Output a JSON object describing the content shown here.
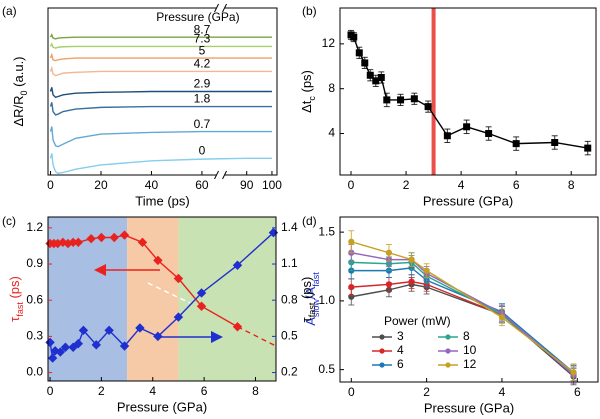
{
  "chart_data": [
    {
      "type": "line",
      "panel_label": "(a)",
      "xlabel": "Time (ps)",
      "ylabel": [
        "ΔR/R",
        "0",
        " (a.u.)"
      ],
      "xlim": [
        -1,
        102
      ],
      "xbreak": [
        65,
        82
      ],
      "ylim": [
        0,
        10
      ],
      "xticks": [
        0,
        20,
        40,
        60,
        90,
        100
      ],
      "legend": "inline",
      "legend_title": "Pressure (GPa)",
      "x": [
        0,
        0.5,
        1,
        2,
        3,
        5,
        10,
        20,
        40,
        60,
        90,
        100
      ],
      "series": [
        {
          "name": "8.7",
          "color": "#7ba23f",
          "values": [
            8.25,
            8.4,
            8.2,
            8.15,
            8.2,
            8.22,
            8.25,
            8.25,
            8.25,
            8.25,
            8.25,
            8.25
          ]
        },
        {
          "name": "7.3",
          "color": "#a9cf6e",
          "values": [
            7.7,
            7.85,
            7.65,
            7.6,
            7.65,
            7.68,
            7.7,
            7.7,
            7.7,
            7.7,
            7.7,
            7.7
          ]
        },
        {
          "name": "5",
          "color": "#f0a060",
          "values": [
            7.0,
            7.2,
            6.9,
            6.85,
            6.9,
            6.95,
            7.0,
            7.0,
            7.0,
            7.0,
            7.0,
            7.0
          ]
        },
        {
          "name": "4.2",
          "color": "#f3b697",
          "values": [
            6.2,
            6.4,
            6.05,
            5.95,
            6.0,
            6.1,
            6.15,
            6.2,
            6.2,
            6.2,
            6.2,
            6.2
          ]
        },
        {
          "name": "2.9",
          "color": "#1d4f7a",
          "values": [
            5.0,
            5.25,
            4.8,
            4.65,
            4.7,
            4.8,
            4.9,
            4.95,
            5.0,
            5.0,
            5.0,
            5.0
          ]
        },
        {
          "name": "1.8",
          "color": "#3a6f9e",
          "values": [
            4.1,
            4.35,
            3.8,
            3.6,
            3.65,
            3.8,
            3.95,
            4.05,
            4.1,
            4.1,
            4.1,
            4.1
          ]
        },
        {
          "name": "0.7",
          "color": "#63a8d2",
          "values": [
            2.6,
            2.9,
            2.1,
            1.75,
            1.7,
            1.85,
            2.2,
            2.45,
            2.55,
            2.6,
            2.6,
            2.6
          ]
        },
        {
          "name": "0",
          "color": "#86cdee",
          "values": [
            1.0,
            1.3,
            0.6,
            0.2,
            0.1,
            0.15,
            0.35,
            0.6,
            0.85,
            0.95,
            1.0,
            1.0
          ]
        }
      ]
    },
    {
      "type": "line",
      "panel_label": "(b)",
      "xlabel": "Pressure (GPa)",
      "ylabel": [
        "Δt",
        "c",
        " (ps)"
      ],
      "xlim": [
        -0.4,
        8.9
      ],
      "ylim": [
        0.3,
        15.2
      ],
      "xticks": [
        0,
        2,
        4,
        6,
        8
      ],
      "yticks": [
        4,
        8,
        12
      ],
      "vline": 3,
      "vline_color": "#e8302a",
      "x": [
        0,
        0.1,
        0.3,
        0.5,
        0.7,
        0.9,
        1.1,
        1.3,
        1.8,
        2.3,
        2.8,
        3.5,
        4.2,
        5.0,
        6.0,
        7.4,
        8.6
      ],
      "series": [
        {
          "color": "#000000",
          "marker": "square",
          "values": [
            12.8,
            12.6,
            11.2,
            10.3,
            9.2,
            8.7,
            9.0,
            7.0,
            7.0,
            7.1,
            6.4,
            3.8,
            4.6,
            4.0,
            3.1,
            3.2,
            2.7
          ],
          "errors": [
            0.4,
            0.4,
            0.5,
            0.5,
            0.5,
            0.5,
            0.5,
            0.6,
            0.5,
            0.5,
            0.5,
            0.6,
            0.6,
            0.6,
            0.6,
            0.6,
            0.6
          ]
        }
      ]
    },
    {
      "type": "line",
      "panel_label": "(c)",
      "xlabel": "Pressure (GPa)",
      "ylabel": [
        "τ",
        "fast",
        " (ps)"
      ],
      "y2label": [
        "A",
        "slow",
        "/A",
        "fast"
      ],
      "xlim": [
        -0.08,
        8.8
      ],
      "ylim": [
        -0.07,
        1.29
      ],
      "y2lim": [
        0.13,
        1.49
      ],
      "xticks": [
        0,
        2,
        4,
        6,
        8
      ],
      "yticks": [
        {
          "value": 0,
          "label": "0.0"
        },
        0.3,
        0.6,
        0.9,
        1.2
      ],
      "y2ticks": [
        0.2,
        0.5,
        0.8,
        1.1,
        1.4
      ],
      "ycolor": "#e8231f",
      "y2color": "#1f2fd0",
      "regions": [
        {
          "x": [
            -0.08,
            3
          ],
          "color": "#a9bee3"
        },
        {
          "x": [
            3,
            5
          ],
          "color": "#f6c9a7"
        },
        {
          "x": [
            5,
            8.8
          ],
          "color": "#c9e2b3"
        }
      ],
      "series": [
        {
          "color": "#e8231f",
          "marker": "diamond",
          "dashed_tail": true,
          "x": [
            0,
            0.15,
            0.3,
            0.5,
            0.7,
            0.9,
            1.1,
            1.6,
            2.0,
            2.5,
            2.9,
            3.6,
            4.2,
            5.0,
            5.9,
            7.3,
            8.8
          ],
          "values": [
            1.07,
            1.07,
            1.07,
            1.08,
            1.07,
            1.08,
            1.08,
            1.11,
            1.12,
            1.12,
            1.14,
            1.08,
            0.93,
            0.78,
            0.55,
            0.38,
            0.22
          ]
        },
        {
          "color": "#1f2fd0",
          "marker": "diamond",
          "axis": "y2",
          "x": [
            0,
            0.1,
            0.2,
            0.4,
            0.6,
            0.9,
            1.1,
            1.3,
            1.8,
            2.3,
            2.9,
            3.5,
            4.2,
            5.0,
            5.9,
            7.3,
            8.7
          ],
          "values": [
            0.45,
            0.32,
            0.38,
            0.37,
            0.41,
            0.41,
            0.44,
            0.55,
            0.43,
            0.55,
            0.42,
            0.57,
            0.5,
            0.66,
            0.86,
            1.09,
            1.36
          ]
        }
      ]
    },
    {
      "type": "line",
      "panel_label": "(d)",
      "xlabel": "Pressure (GPa)",
      "ylabel": [
        "τ",
        "fast",
        " (ps)"
      ],
      "xlim": [
        -0.3,
        6.55
      ],
      "ylim": [
        0.41,
        1.61
      ],
      "xticks": [
        0,
        2,
        4,
        6
      ],
      "yticks": [
        0.5,
        {
          "value": 1,
          "label": "1.0"
        },
        1.5
      ],
      "legend": "lower-left",
      "legend_title": "Power (mW)",
      "x": [
        0,
        1.0,
        1.6,
        2.0,
        4.0,
        5.9
      ],
      "series": [
        {
          "name": "3",
          "color": "#4d4d4d",
          "marker": "circle",
          "values": [
            1.03,
            1.08,
            1.12,
            1.1,
            0.9,
            0.45
          ],
          "errors": [
            0.06,
            0.05,
            0.05,
            0.05,
            0.06,
            0.06
          ]
        },
        {
          "name": "4",
          "color": "#d62728",
          "marker": "circle",
          "values": [
            1.1,
            1.12,
            1.14,
            1.12,
            0.9,
            0.47
          ],
          "errors": [
            0.06,
            0.05,
            0.05,
            0.05,
            0.06,
            0.06
          ]
        },
        {
          "name": "6",
          "color": "#1f77b4",
          "marker": "circle",
          "values": [
            1.22,
            1.22,
            1.24,
            1.15,
            0.92,
            0.48
          ],
          "errors": [
            0.06,
            0.05,
            0.05,
            0.05,
            0.06,
            0.06
          ]
        },
        {
          "name": "8",
          "color": "#2ca58d",
          "marker": "circle",
          "values": [
            1.28,
            1.27,
            1.28,
            1.18,
            0.9,
            0.47
          ],
          "errors": [
            0.06,
            0.05,
            0.05,
            0.05,
            0.06,
            0.06
          ]
        },
        {
          "name": "10",
          "color": "#9467bd",
          "marker": "circle",
          "values": [
            1.35,
            1.3,
            1.3,
            1.2,
            0.91,
            0.46
          ],
          "errors": [
            0.06,
            0.05,
            0.05,
            0.05,
            0.06,
            0.06
          ]
        },
        {
          "name": "12",
          "color": "#c8a020",
          "marker": "circle",
          "values": [
            1.43,
            1.35,
            1.3,
            1.22,
            0.88,
            0.48
          ],
          "errors": [
            0.08,
            0.06,
            0.05,
            0.05,
            0.06,
            0.06
          ]
        }
      ]
    }
  ]
}
